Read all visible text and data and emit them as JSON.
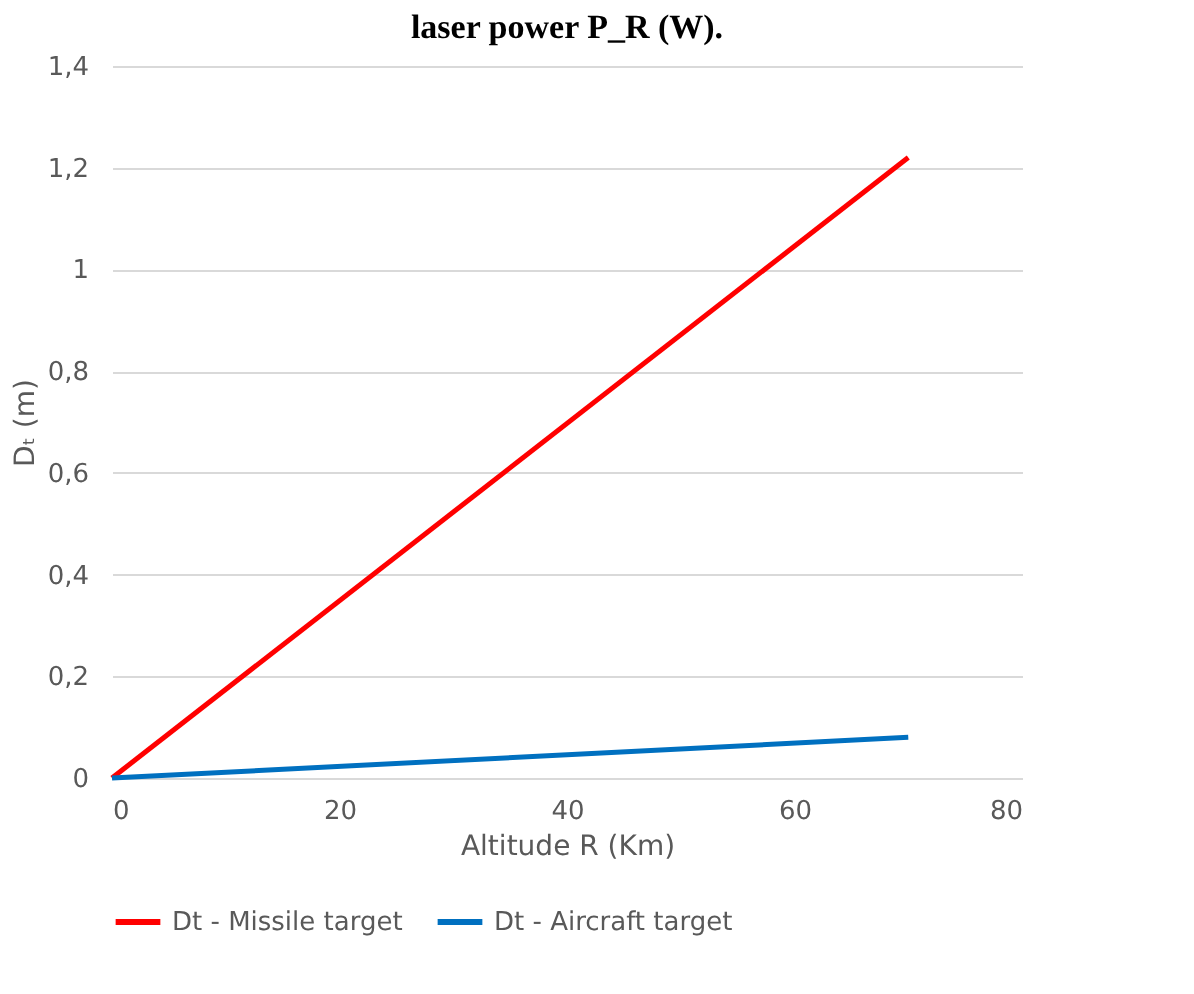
{
  "chart_data": {
    "type": "line",
    "title": "laser power P_R (W).",
    "xlabel": "Altitude R (Km)",
    "ylabel": "Dₜ (m)",
    "x": [
      0,
      70
    ],
    "series": [
      {
        "name": "Dt - Missile target",
        "color": "#ff0000",
        "values": [
          0,
          1.22
        ]
      },
      {
        "name": "Dt - Aircraft target",
        "color": "#0070c0",
        "values": [
          0,
          0.08
        ]
      }
    ],
    "xlim": [
      0,
      80
    ],
    "xticks": [
      0,
      20,
      40,
      60,
      80
    ],
    "ylim": [
      0,
      1.4
    ],
    "yticks": [
      0,
      {
        "value": 0.2,
        "label": "0,2"
      },
      {
        "value": 0.4,
        "label": "0,4"
      },
      {
        "value": 0.6,
        "label": "0,6"
      },
      {
        "value": 0.8,
        "label": "0,8"
      },
      1,
      {
        "value": 1.2,
        "label": "1,2"
      },
      {
        "value": 1.4,
        "label": "1,4"
      }
    ],
    "grid": "y",
    "legend": "bottom",
    "line_style": "solid",
    "marker": "none"
  }
}
